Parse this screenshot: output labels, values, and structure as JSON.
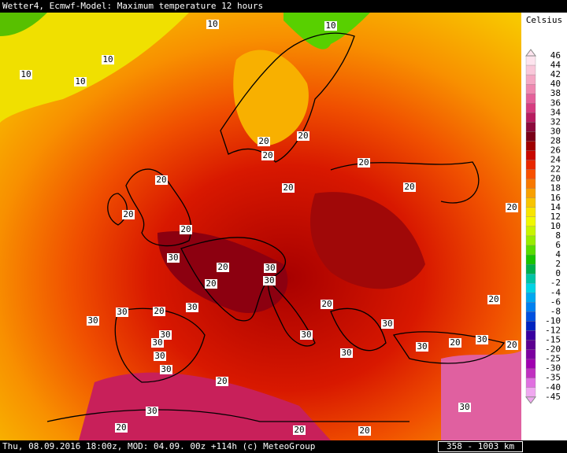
{
  "header": {
    "title": "Wetter4, Ecmwf-Model: Maximum temperature 12 hours"
  },
  "footer": {
    "info": "Thu, 08.09.2016 18:00z, MOD: 04.09. 00z +114h (c) MeteoGroup",
    "scale": "358 - 1003 km"
  },
  "legend": {
    "title": "Celsius",
    "levels": [
      46,
      44,
      42,
      40,
      38,
      36,
      34,
      32,
      30,
      28,
      26,
      24,
      22,
      20,
      18,
      16,
      14,
      12,
      10,
      8,
      6,
      4,
      2,
      0,
      -2,
      -4,
      -6,
      -8,
      -10,
      -12,
      -15,
      -20,
      -25,
      -30,
      -35,
      -40,
      -45
    ],
    "colors": [
      "#fde4ee",
      "#f9c8da",
      "#f4a8c4",
      "#ee88b0",
      "#e4609a",
      "#d63c80",
      "#b81c60",
      "#8c0a3c",
      "#7a0018",
      "#a00000",
      "#c80800",
      "#e82800",
      "#f85000",
      "#f87800",
      "#f8a000",
      "#f8c400",
      "#f8e400",
      "#f0f800",
      "#c8f400",
      "#98ec00",
      "#58dc00",
      "#18c400",
      "#00b04c",
      "#00c4a4",
      "#00d4e4",
      "#00a8f0",
      "#0080f0",
      "#0050e0",
      "#0024c0",
      "#3800a0",
      "#5c0090",
      "#7c00a0",
      "#a000b0",
      "#c030c0",
      "#e070e0",
      "#f0a8f0"
    ]
  },
  "map": {
    "contour_labels": [
      10,
      10,
      10,
      10,
      10,
      20,
      20,
      20,
      20,
      20,
      20,
      20,
      20,
      20,
      20,
      20,
      30,
      30,
      30,
      20,
      30,
      20,
      30,
      30,
      30,
      20,
      30,
      30,
      30,
      30,
      30,
      20,
      30,
      20,
      30,
      30,
      20,
      20,
      30,
      30,
      20,
      20,
      20
    ]
  }
}
